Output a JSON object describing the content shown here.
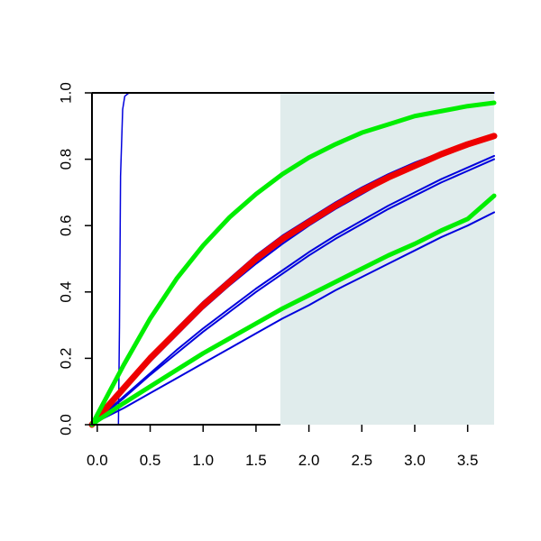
{
  "chart_data": {
    "type": "line",
    "title": "",
    "xlabel": "",
    "ylabel": "",
    "xlim": [
      -0.05,
      3.75
    ],
    "ylim": [
      0.0,
      1.0
    ],
    "x_ticks": [
      "0.0",
      "0.5",
      "1.0",
      "1.5",
      "2.0",
      "2.5",
      "3.0",
      "3.5"
    ],
    "y_ticks": [
      "0.0",
      "0.2",
      "0.4",
      "0.6",
      "0.8",
      "1.0"
    ],
    "grid": false,
    "shaded_region": {
      "x_start": 1.73,
      "x_end": 3.75,
      "color": "#e0ecec"
    },
    "series": [
      {
        "color": "#0000dd",
        "linewidth": 1.5,
        "x": [
          -0.05,
          0.2,
          0.21,
          0.22,
          0.24,
          0.26,
          0.3,
          3.75
        ],
        "y": [
          0.0,
          0.0,
          0.3,
          0.75,
          0.95,
          0.99,
          1.0,
          1.0
        ]
      },
      {
        "color": "#0000dd",
        "linewidth": 2,
        "x": [
          -0.05,
          0.0,
          0.25,
          0.5,
          0.75,
          1.0,
          1.25,
          1.5,
          1.75,
          2.0,
          2.25,
          2.5,
          2.75,
          3.0,
          3.25,
          3.5,
          3.75
        ],
        "y": [
          0.0,
          0.02,
          0.115,
          0.205,
          0.29,
          0.37,
          0.44,
          0.51,
          0.57,
          0.62,
          0.67,
          0.715,
          0.755,
          0.79,
          0.82,
          0.85,
          0.875
        ]
      },
      {
        "color": "#0000dd",
        "linewidth": 2,
        "x": [
          -0.05,
          0.0,
          0.25,
          0.5,
          0.75,
          1.0,
          1.25,
          1.5,
          1.75,
          2.0,
          2.25,
          2.5,
          2.75,
          3.0,
          3.25,
          3.5,
          3.75
        ],
        "y": [
          0.0,
          0.02,
          0.105,
          0.19,
          0.27,
          0.35,
          0.42,
          0.485,
          0.545,
          0.6,
          0.65,
          0.695,
          0.74,
          0.78,
          0.815,
          0.845,
          0.865
        ]
      },
      {
        "color": "#0000dd",
        "linewidth": 2,
        "x": [
          -0.05,
          0.0,
          0.25,
          0.5,
          0.75,
          1.0,
          1.25,
          1.5,
          1.75,
          2.0,
          2.25,
          2.5,
          2.75,
          3.0,
          3.25,
          3.5,
          3.75
        ],
        "y": [
          0.0,
          0.015,
          0.085,
          0.155,
          0.225,
          0.29,
          0.35,
          0.41,
          0.465,
          0.52,
          0.57,
          0.615,
          0.66,
          0.7,
          0.74,
          0.775,
          0.81
        ]
      },
      {
        "color": "#0000dd",
        "linewidth": 2,
        "x": [
          -0.05,
          0.0,
          0.25,
          0.5,
          0.75,
          1.0,
          1.25,
          1.5,
          1.75,
          2.0,
          2.25,
          2.5,
          2.75,
          3.0,
          3.25,
          3.5,
          3.75
        ],
        "y": [
          0.0,
          0.015,
          0.08,
          0.15,
          0.215,
          0.28,
          0.34,
          0.4,
          0.455,
          0.51,
          0.56,
          0.605,
          0.65,
          0.69,
          0.73,
          0.765,
          0.8
        ]
      },
      {
        "color": "#0000dd",
        "linewidth": 2,
        "x": [
          -0.05,
          0.0,
          0.25,
          0.5,
          0.75,
          1.0,
          1.25,
          1.5,
          1.75,
          2.0,
          2.25,
          2.5,
          2.75,
          3.0,
          3.25,
          3.5,
          3.75
        ],
        "y": [
          0.0,
          0.01,
          0.05,
          0.095,
          0.14,
          0.185,
          0.23,
          0.275,
          0.32,
          0.36,
          0.405,
          0.445,
          0.485,
          0.525,
          0.565,
          0.6,
          0.64
        ]
      },
      {
        "color": "#ee0000",
        "linewidth": 7,
        "x": [
          -0.05,
          0.0,
          0.25,
          0.5,
          0.75,
          1.0,
          1.25,
          1.5,
          1.75,
          2.0,
          2.25,
          2.5,
          2.75,
          3.0,
          3.25,
          3.5,
          3.75
        ],
        "y": [
          0.0,
          0.02,
          0.11,
          0.2,
          0.28,
          0.36,
          0.43,
          0.5,
          0.56,
          0.61,
          0.66,
          0.705,
          0.745,
          0.78,
          0.815,
          0.845,
          0.87
        ]
      },
      {
        "color": "#00ee00",
        "linewidth": 5,
        "x": [
          -0.05,
          0.0,
          0.25,
          0.5,
          0.75,
          1.0,
          1.25,
          1.5,
          1.75,
          2.0,
          2.25,
          2.5,
          2.75,
          3.0,
          3.25,
          3.5,
          3.75
        ],
        "y": [
          0.0,
          0.03,
          0.18,
          0.32,
          0.44,
          0.54,
          0.625,
          0.695,
          0.755,
          0.805,
          0.845,
          0.88,
          0.905,
          0.93,
          0.945,
          0.96,
          0.97
        ]
      },
      {
        "color": "#00ee00",
        "linewidth": 5,
        "x": [
          -0.05,
          0.0,
          0.25,
          0.5,
          0.75,
          1.0,
          1.25,
          1.5,
          1.75,
          2.0,
          2.25,
          2.5,
          2.75,
          3.0,
          3.25,
          3.5,
          3.75
        ],
        "y": [
          0.0,
          0.012,
          0.065,
          0.115,
          0.165,
          0.215,
          0.26,
          0.305,
          0.35,
          0.39,
          0.43,
          0.47,
          0.51,
          0.545,
          0.585,
          0.62,
          0.69
        ]
      }
    ]
  }
}
